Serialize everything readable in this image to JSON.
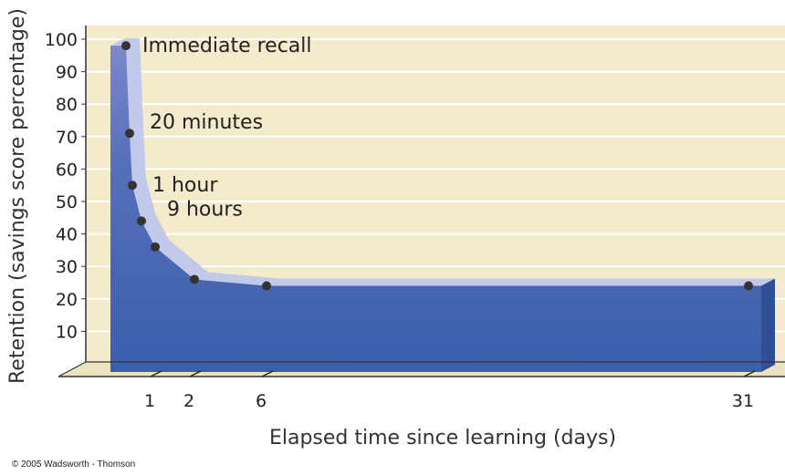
{
  "chart_data": {
    "type": "area",
    "title": "",
    "xlabel": "Elapsed time since learning (days)",
    "ylabel": "Retention (savings score percentage)",
    "yticks": [
      10,
      20,
      30,
      40,
      50,
      60,
      70,
      80,
      90,
      100
    ],
    "ylim": [
      0,
      100
    ],
    "xticks": [
      "1",
      "2",
      "6",
      "31"
    ],
    "grid": true,
    "points": [
      {
        "x": 0,
        "y": 98,
        "label": "Immediate recall"
      },
      {
        "x": 0.014,
        "y": 71,
        "label": "20 minutes"
      },
      {
        "x": 0.042,
        "y": 55,
        "label": "1 hour"
      },
      {
        "x": 0.375,
        "y": 44,
        "label": "9 hours"
      },
      {
        "x": 1,
        "y": 36,
        "label": ""
      },
      {
        "x": 2,
        "y": 26,
        "label": ""
      },
      {
        "x": 6,
        "y": 24,
        "label": ""
      },
      {
        "x": 31,
        "y": 24,
        "label": ""
      }
    ],
    "colors": {
      "background": "#f3ebcb",
      "area_front": "#3f63ad",
      "area_top": "#c2c9ea",
      "grid": "#ffffff",
      "marker": "#333333"
    }
  },
  "copyright": "© 2005 Wadsworth - Thomson"
}
